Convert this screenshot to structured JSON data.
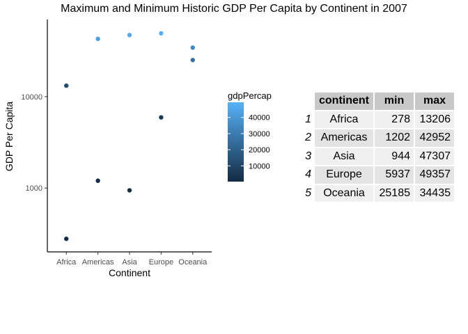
{
  "chart_data": {
    "type": "scatter",
    "title": "Maximum and Minimum Historic GDP Per Capita by Continent in 2007",
    "xlabel": "Continent",
    "ylabel": "GDP Per Capita",
    "categories": [
      "Africa",
      "Americas",
      "Asia",
      "Europe",
      "Oceania"
    ],
    "y_scale": "log10",
    "y_ticks": [
      1000,
      10000
    ],
    "y_tick_labels": [
      "1000",
      "10000"
    ],
    "ylim": [
      200,
      70000
    ],
    "grid": false,
    "legend_position": "right",
    "points": [
      {
        "x": "Africa",
        "y": 278
      },
      {
        "x": "Africa",
        "y": 13206
      },
      {
        "x": "Americas",
        "y": 1202
      },
      {
        "x": "Americas",
        "y": 42952
      },
      {
        "x": "Asia",
        "y": 944
      },
      {
        "x": "Asia",
        "y": 47307
      },
      {
        "x": "Europe",
        "y": 5937
      },
      {
        "x": "Europe",
        "y": 49357
      },
      {
        "x": "Oceania",
        "y": 25185
      },
      {
        "x": "Oceania",
        "y": 34435
      }
    ],
    "color_legend": {
      "title": "gdpPercap",
      "low_color": "#132B43",
      "high_color": "#56B1F7",
      "range": [
        278,
        49357
      ],
      "breaks": [
        10000,
        20000,
        30000,
        40000
      ],
      "break_labels": [
        "10000",
        "20000",
        "30000",
        "40000"
      ]
    }
  },
  "table": {
    "columns": [
      "continent",
      "min",
      "max"
    ],
    "rows": [
      {
        "row": "1",
        "continent": "Africa",
        "min": "278",
        "max": "13206"
      },
      {
        "row": "2",
        "continent": "Americas",
        "min": "1202",
        "max": "42952"
      },
      {
        "row": "3",
        "continent": "Asia",
        "min": "944",
        "max": "47307"
      },
      {
        "row": "4",
        "continent": "Europe",
        "min": "5937",
        "max": "49357"
      },
      {
        "row": "5",
        "continent": "Oceania",
        "min": "25185",
        "max": "34435"
      }
    ]
  }
}
